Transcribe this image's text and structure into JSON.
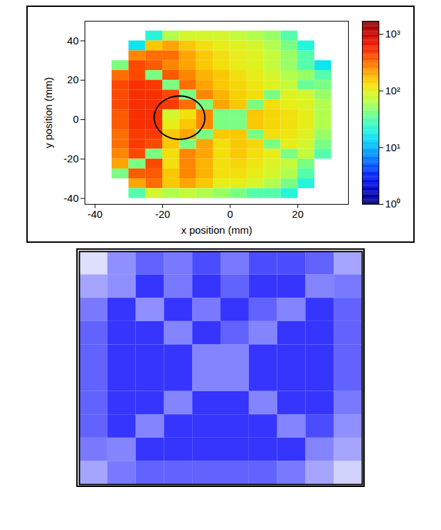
{
  "chart_data": [
    {
      "type": "heatmap",
      "xlabel": "x position (mm)",
      "ylabel": "y position (mm)",
      "xlim": [
        -43,
        35
      ],
      "ylim": [
        -43,
        50
      ],
      "xticks": [
        -40,
        -20,
        0,
        20
      ],
      "yticks": [
        -40,
        -20,
        0,
        20,
        40
      ],
      "log": true,
      "x": [
        -32.5,
        -27.5,
        -22.5,
        -17.5,
        -12.5,
        -7.5,
        -2.5,
        2.5,
        7.5,
        12.5,
        17.5,
        22.5,
        27.5
      ],
      "y": [
        42.5,
        37.5,
        32.5,
        27.5,
        22.5,
        17.5,
        12.5,
        7.5,
        2.5,
        -2.5,
        -7.5,
        -12.5,
        -17.5,
        -22.5,
        -27.5,
        -32.5,
        -37.5
      ],
      "cells": [
        [
          null,
          null,
          20,
          60,
          80,
          80,
          80,
          70,
          60,
          50,
          30,
          null,
          null
        ],
        [
          null,
          15,
          150,
          200,
          150,
          120,
          100,
          90,
          80,
          60,
          40,
          20,
          null
        ],
        [
          null,
          250,
          300,
          300,
          200,
          150,
          120,
          100,
          90,
          70,
          50,
          30,
          null
        ],
        [
          40,
          400,
          350,
          250,
          200,
          150,
          120,
          100,
          90,
          70,
          50,
          30,
          15
        ],
        [
          300,
          400,
          40,
          350,
          250,
          180,
          150,
          120,
          100,
          80,
          60,
          50,
          30
        ],
        [
          400,
          500,
          450,
          40,
          300,
          200,
          150,
          130,
          110,
          90,
          70,
          35,
          40
        ],
        [
          400,
          500,
          500,
          400,
          40,
          250,
          180,
          140,
          120,
          40,
          90,
          80,
          50
        ],
        [
          400,
          500,
          500,
          450,
          300,
          40,
          200,
          150,
          40,
          120,
          100,
          90,
          60
        ],
        [
          350,
          500,
          500,
          80,
          120,
          250,
          40,
          40,
          150,
          130,
          120,
          100,
          60
        ],
        [
          350,
          500,
          500,
          100,
          150,
          250,
          40,
          40,
          150,
          130,
          120,
          100,
          60
        ],
        [
          300,
          450,
          450,
          150,
          200,
          40,
          150,
          150,
          40,
          120,
          110,
          90,
          50
        ],
        [
          300,
          450,
          400,
          150,
          40,
          200,
          120,
          150,
          130,
          40,
          100,
          80,
          40
        ],
        [
          250,
          400,
          40,
          120,
          250,
          200,
          120,
          150,
          120,
          100,
          40,
          70,
          30
        ],
        [
          200,
          40,
          400,
          120,
          250,
          180,
          120,
          130,
          110,
          90,
          70,
          40,
          null
        ],
        [
          40,
          350,
          350,
          150,
          250,
          180,
          120,
          120,
          100,
          80,
          60,
          30,
          null
        ],
        [
          null,
          200,
          300,
          150,
          200,
          150,
          100,
          100,
          80,
          60,
          40,
          20,
          null
        ],
        [
          null,
          30,
          80,
          60,
          70,
          60,
          50,
          40,
          30,
          30,
          20,
          null,
          null
        ]
      ],
      "color_range": [
        1,
        1700
      ],
      "color_ticks": [
        {
          "value": 1,
          "label": "10⁰"
        },
        {
          "value": 10,
          "label": "10¹"
        },
        {
          "value": 100,
          "label": "10²"
        },
        {
          "value": 1000,
          "label": "10³"
        }
      ],
      "annotations": [
        {
          "shape": "ellipse",
          "x": -15,
          "y": 1,
          "rx": 7.5,
          "ry": 11,
          "color": "#000000"
        }
      ]
    },
    {
      "type": "density",
      "tick_labels": false,
      "color": "#1f1fff",
      "xlim": [
        0,
        10
      ],
      "ylim": [
        0,
        10
      ],
      "value_range": [
        0,
        100
      ],
      "x": [
        0.5,
        1.5,
        2.5,
        3.5,
        4.5,
        5.5,
        6.5,
        7.5,
        8.5,
        9.5
      ],
      "y": [
        9.5,
        8.5,
        7.5,
        6.5,
        5.5,
        4.5,
        3.5,
        2.5,
        1.5,
        0.5
      ],
      "cells": [
        [
          15,
          50,
          70,
          60,
          80,
          60,
          80,
          80,
          70,
          40
        ],
        [
          40,
          50,
          90,
          60,
          90,
          70,
          90,
          90,
          55,
          60
        ],
        [
          60,
          90,
          50,
          90,
          60,
          90,
          70,
          55,
          90,
          70
        ],
        [
          70,
          90,
          90,
          55,
          90,
          70,
          55,
          90,
          90,
          70
        ],
        [
          70,
          90,
          90,
          90,
          55,
          55,
          90,
          90,
          90,
          70
        ],
        [
          70,
          90,
          90,
          90,
          55,
          55,
          90,
          90,
          90,
          70
        ],
        [
          70,
          90,
          90,
          55,
          90,
          90,
          55,
          90,
          90,
          60
        ],
        [
          70,
          90,
          55,
          90,
          90,
          90,
          90,
          55,
          80,
          50
        ],
        [
          60,
          55,
          90,
          90,
          90,
          90,
          90,
          90,
          55,
          40
        ],
        [
          40,
          60,
          70,
          70,
          70,
          70,
          70,
          60,
          40,
          20
        ]
      ]
    }
  ]
}
